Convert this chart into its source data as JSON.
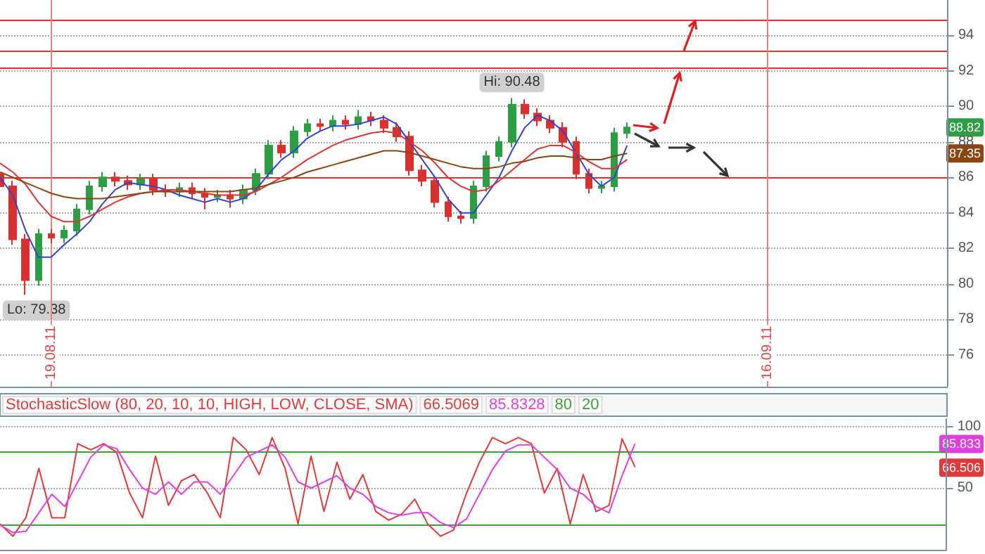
{
  "chart_data": [
    {
      "type": "candlestick",
      "x": [
        "2011-08-17T00:00",
        "2011-08-17T12:00",
        "2011-08-18T00:00",
        "2011-08-18T12:00",
        "2011-08-19T00:00",
        "2011-08-19T12:00",
        "2011-08-20T00:00",
        "2011-08-20T12:00",
        "2011-08-21T00:00",
        "2011-08-21T12:00",
        "2011-08-22T00:00",
        "2011-08-22T12:00",
        "2011-08-23T00:00",
        "2011-08-23T12:00",
        "2011-08-24T00:00",
        "2011-08-24T12:00",
        "2011-08-25T00:00",
        "2011-08-25T12:00",
        "2011-08-26T00:00",
        "2011-08-26T12:00",
        "2011-08-27T00:00",
        "2011-08-27T12:00",
        "2011-08-28T00:00",
        "2011-08-28T12:00",
        "2011-08-29T00:00",
        "2011-08-29T12:00",
        "2011-08-30T00:00",
        "2011-08-30T12:00",
        "2011-08-31T00:00",
        "2011-08-31T12:00",
        "2011-09-01T00:00",
        "2011-09-01T12:00",
        "2011-09-02T00:00",
        "2011-09-02T12:00",
        "2011-09-03T00:00",
        "2011-09-03T12:00",
        "2011-09-04T00:00",
        "2011-09-04T12:00",
        "2011-09-05T00:00",
        "2011-09-05T12:00",
        "2011-09-06T00:00",
        "2011-09-06T12:00",
        "2011-09-07T00:00",
        "2011-09-07T12:00",
        "2011-09-08T00:00",
        "2011-09-08T12:00",
        "2011-09-09T00:00",
        "2011-09-09T12:00",
        "2011-09-10T00:00",
        "2011-09-10T12:00"
      ],
      "ohlc": [
        [
          86.2,
          86.5,
          85.2,
          85.5
        ],
        [
          85.5,
          85.8,
          82.2,
          82.5
        ],
        [
          82.5,
          82.8,
          79.38,
          80.2
        ],
        [
          80.2,
          83.1,
          79.9,
          82.8
        ],
        [
          82.8,
          83.1,
          82.3,
          82.6
        ],
        [
          82.6,
          83.3,
          82.3,
          83.0
        ],
        [
          83.0,
          84.5,
          82.7,
          84.2
        ],
        [
          84.2,
          85.8,
          83.9,
          85.5
        ],
        [
          85.5,
          86.3,
          85.2,
          86.0
        ],
        [
          86.0,
          86.3,
          85.5,
          85.8
        ],
        [
          85.8,
          86.1,
          85.3,
          85.6
        ],
        [
          85.6,
          86.2,
          85.3,
          85.9
        ],
        [
          85.9,
          86.2,
          85.0,
          85.3
        ],
        [
          85.3,
          85.6,
          84.9,
          85.2
        ],
        [
          85.2,
          85.7,
          84.9,
          85.4
        ],
        [
          85.4,
          85.7,
          84.8,
          85.1
        ],
        [
          85.1,
          85.4,
          84.2,
          84.9
        ],
        [
          84.9,
          85.3,
          84.6,
          85.0
        ],
        [
          85.0,
          85.3,
          84.3,
          84.8
        ],
        [
          84.8,
          85.6,
          84.5,
          85.3
        ],
        [
          85.3,
          86.5,
          85.0,
          86.2
        ],
        [
          86.2,
          88.1,
          85.9,
          87.8
        ],
        [
          87.8,
          88.1,
          87.1,
          87.4
        ],
        [
          87.4,
          88.9,
          87.1,
          88.6
        ],
        [
          88.6,
          89.3,
          88.3,
          89.0
        ],
        [
          89.0,
          89.3,
          88.6,
          88.9
        ],
        [
          88.9,
          89.5,
          88.6,
          89.2
        ],
        [
          89.2,
          89.5,
          88.7,
          89.0
        ],
        [
          89.0,
          89.8,
          88.7,
          89.4
        ],
        [
          89.4,
          89.7,
          88.9,
          89.2
        ],
        [
          89.2,
          89.5,
          88.5,
          88.8
        ],
        [
          88.8,
          89.1,
          88.0,
          88.3
        ],
        [
          88.3,
          88.6,
          86.1,
          86.4
        ],
        [
          86.4,
          86.7,
          85.5,
          85.8
        ],
        [
          85.8,
          86.1,
          84.3,
          84.6
        ],
        [
          84.6,
          84.9,
          83.5,
          83.8
        ],
        [
          83.8,
          84.1,
          83.4,
          83.7
        ],
        [
          83.7,
          85.8,
          83.4,
          85.5
        ],
        [
          85.5,
          87.5,
          85.2,
          87.2
        ],
        [
          87.2,
          88.3,
          86.9,
          88.0
        ],
        [
          88.0,
          90.48,
          87.7,
          90.1
        ],
        [
          90.1,
          90.4,
          89.3,
          89.6
        ],
        [
          89.6,
          89.9,
          88.9,
          89.2
        ],
        [
          89.2,
          89.5,
          88.5,
          88.8
        ],
        [
          88.8,
          89.1,
          87.7,
          88.0
        ],
        [
          88.0,
          88.3,
          85.9,
          86.2
        ],
        [
          86.2,
          86.5,
          85.1,
          85.4
        ],
        [
          85.4,
          85.8,
          85.1,
          85.5
        ],
        [
          85.5,
          88.8,
          85.2,
          88.5
        ],
        [
          88.5,
          89.1,
          88.2,
          88.82
        ]
      ],
      "colors": [
        "#d93030",
        "#d93030",
        "#d93030",
        "#2e9e44",
        "#d93030",
        "#2e9e44",
        "#2e9e44",
        "#2e9e44",
        "#2e9e44",
        "#d93030",
        "#d93030",
        "#2e9e44",
        "#d93030",
        "#d93030",
        "#2e9e44",
        "#d93030",
        "#d93030",
        "#2e9e44",
        "#d93030",
        "#2e9e44",
        "#2e9e44",
        "#2e9e44",
        "#d93030",
        "#2e9e44",
        "#2e9e44",
        "#d93030",
        "#2e9e44",
        "#d93030",
        "#2e9e44",
        "#d93030",
        "#d93030",
        "#d93030",
        "#d93030",
        "#d93030",
        "#d93030",
        "#d93030",
        "#d93030",
        "#2e9e44",
        "#2e9e44",
        "#2e9e44",
        "#2e9e44",
        "#d93030",
        "#d93030",
        "#d93030",
        "#d93030",
        "#d93030",
        "#d93030",
        "#2e9e44",
        "#2e9e44",
        "#2e9e44"
      ],
      "series": [
        {
          "type": "line",
          "color": "#3344cc",
          "values": [
            86,
            85,
            83,
            81.5,
            81.5,
            82.2,
            82.8,
            83.5,
            84.5,
            85.3,
            85.7,
            85.6,
            85.5,
            85.3,
            85.0,
            84.8,
            84.6,
            84.8,
            84.6,
            84.8,
            85.3,
            86.2,
            87.0,
            87.5,
            88.2,
            88.6,
            88.9,
            88.9,
            89.0,
            89.2,
            89.4,
            89.0,
            88.0,
            87.0,
            86.0,
            84.8,
            84.0,
            84.0,
            85.0,
            86.0,
            87.5,
            88.8,
            89.5,
            89.2,
            88.6,
            87.4,
            86.2,
            85.5,
            86.0,
            87.8
          ]
        },
        {
          "type": "line",
          "color": "#dd3333",
          "values": [
            86.8,
            86.3,
            85.6,
            84.6,
            83.8,
            83.5,
            83.5,
            83.8,
            84.2,
            84.6,
            84.9,
            85.1,
            85.2,
            85.3,
            85.3,
            85.2,
            85.1,
            85.0,
            85.0,
            85.0,
            85.2,
            85.6,
            86.0,
            86.5,
            87.0,
            87.4,
            87.8,
            88.1,
            88.3,
            88.5,
            88.6,
            88.5,
            88.0,
            87.5,
            86.8,
            86.0,
            85.5,
            85.2,
            85.3,
            85.8,
            86.4,
            87.0,
            87.6,
            87.8,
            87.8,
            87.4,
            86.9,
            86.5,
            86.5,
            87.0
          ]
        },
        {
          "type": "line",
          "color": "#8b4513",
          "values": [
            86.3,
            86.0,
            85.7,
            85.4,
            85.1,
            84.9,
            84.8,
            84.8,
            84.8,
            84.9,
            85.0,
            85.1,
            85.2,
            85.2,
            85.2,
            85.2,
            85.2,
            85.2,
            85.2,
            85.3,
            85.4,
            85.6,
            85.8,
            86.0,
            86.3,
            86.5,
            86.7,
            86.9,
            87.1,
            87.3,
            87.5,
            87.5,
            87.4,
            87.2,
            87.0,
            86.8,
            86.6,
            86.5,
            86.5,
            86.6,
            86.8,
            86.9,
            87.1,
            87.2,
            87.2,
            87.1,
            87.0,
            87.0,
            87.2,
            87.35
          ]
        }
      ],
      "xlim": [
        "2011-08-17T00:00",
        "2011-09-23T00:00"
      ],
      "xticks": [
        {
          "value": "2011-08-19",
          "label": "19.08.11"
        },
        {
          "value": "2011-09-16",
          "label": "16.09.11"
        }
      ],
      "ylim": [
        74.2,
        96
      ],
      "yticks": [
        76,
        78,
        80,
        82,
        84,
        86,
        88,
        90,
        92,
        94
      ],
      "grid": "y",
      "ref_lines": [
        {
          "axis": "y",
          "value": 94.9,
          "color": "#e03030"
        },
        {
          "axis": "y",
          "value": 93.1,
          "color": "#e03030"
        },
        {
          "axis": "y",
          "value": 92.2,
          "color": "#e03030"
        },
        {
          "axis": "y",
          "value": 86.0,
          "color": "#e03030"
        },
        {
          "axis": "x",
          "value": "2011-08-19",
          "color": "#f08080"
        },
        {
          "axis": "x",
          "value": "2011-09-16",
          "color": "#f08080"
        }
      ],
      "annotations": [
        {
          "text": "Hi: 90.48",
          "x": "2011-09-06T00:00",
          "y": 90.48
        },
        {
          "text": "Lo: 79.38",
          "x": "2011-08-18T00:00",
          "y": 79.38
        },
        {
          "text": "88.82",
          "y": 88.82
        },
        {
          "text": "87.35",
          "y": 87.35
        }
      ]
    },
    {
      "type": "line",
      "title": "StochasticSlow (80, 20, 10, 10, HIGH, LOW, CLOSE, SMA)",
      "categories": [
        null,
        null,
        null,
        null,
        null,
        null,
        null,
        null,
        null,
        null,
        null,
        null,
        null,
        null,
        null,
        null,
        null,
        null,
        null,
        null,
        null,
        null,
        null,
        null,
        null,
        null,
        null,
        null,
        null,
        null,
        null,
        null,
        null,
        null,
        null,
        null,
        null,
        null,
        null,
        null,
        null,
        null,
        null,
        null,
        null,
        null,
        null,
        null,
        null,
        null,
        null,
        null,
        null,
        null,
        null,
        null,
        null,
        null,
        null,
        null,
        null,
        null,
        null,
        null,
        null,
        null,
        null,
        null,
        null,
        null,
        null,
        null,
        null,
        null
      ],
      "series": [
        {
          "name": "66.5069",
          "color": "#e03a3a",
          "values": [
            21,
            11,
            26,
            66,
            26,
            26,
            86,
            81,
            86,
            79,
            46,
            26,
            76,
            36,
            56,
            61,
            46,
            26,
            91,
            81,
            61,
            91,
            66,
            21,
            76,
            31,
            71,
            41,
            61,
            31,
            24,
            29,
            41,
            21,
            11,
            16,
            46,
            71,
            91,
            86,
            91,
            86,
            46,
            66,
            21,
            61,
            31,
            36,
            90,
            67,
            null,
            null,
            null,
            null,
            null,
            null,
            null,
            null,
            null,
            null,
            null,
            null,
            null,
            null,
            null,
            null,
            null,
            null,
            null,
            null,
            null,
            null,
            null,
            null
          ]
        },
        {
          "name": "85.8328",
          "color": "#e040e0",
          "values": [
            20,
            14,
            15,
            30,
            45,
            35,
            55,
            75,
            85,
            82,
            65,
            50,
            45,
            55,
            45,
            55,
            55,
            45,
            60,
            75,
            80,
            85,
            75,
            55,
            50,
            55,
            60,
            50,
            45,
            35,
            30,
            28,
            30,
            30,
            22,
            18,
            25,
            45,
            65,
            80,
            85,
            85,
            75,
            65,
            50,
            45,
            35,
            30,
            60,
            86,
            null,
            null,
            null,
            null,
            null,
            null,
            null,
            null,
            null,
            null,
            null,
            null,
            null,
            null,
            null,
            null,
            null,
            null,
            null,
            null,
            null,
            null,
            null,
            null
          ]
        }
      ],
      "ylim": [
        0,
        106
      ],
      "yticks": [
        50,
        100
      ],
      "tick_labels": "y",
      "grid": "y",
      "legend": "top left",
      "ref_lines": [
        {
          "axis": "y",
          "value": 80,
          "label": "80",
          "color": "#3aa03a"
        },
        {
          "axis": "y",
          "value": 20,
          "label": "20",
          "color": "#3aa03a"
        }
      ],
      "annotations": [
        {
          "text": "85.833",
          "y": 85.833
        },
        {
          "text": "66.506",
          "y": 66.506
        }
      ]
    }
  ]
}
